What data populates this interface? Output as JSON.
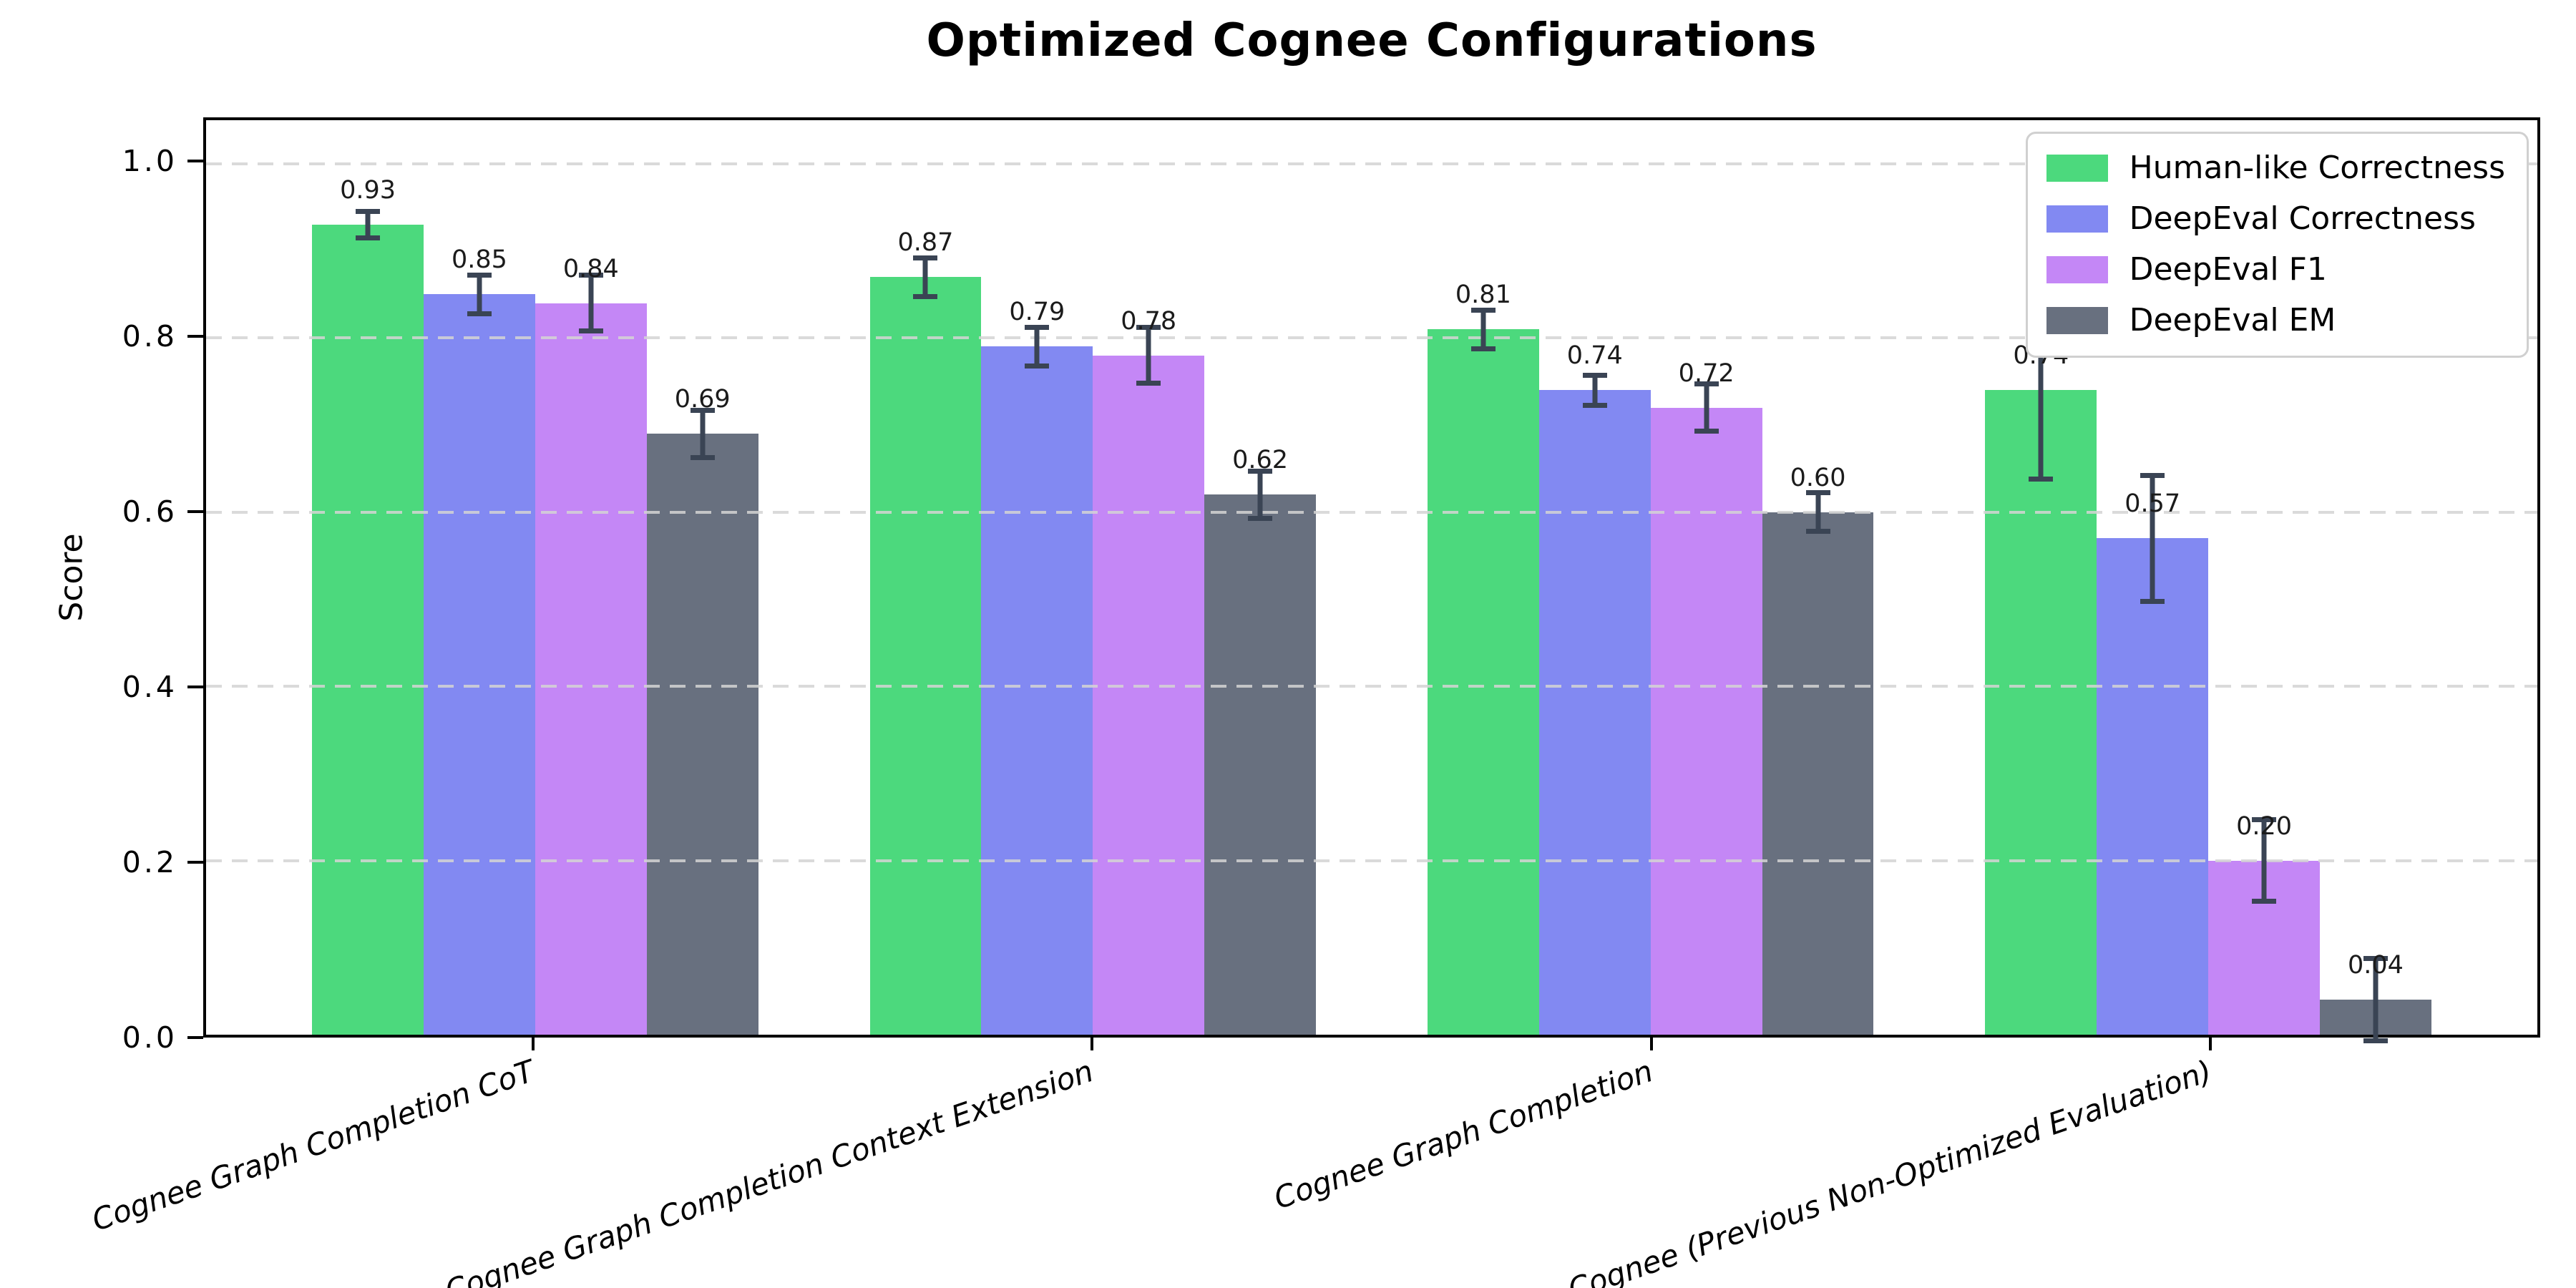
{
  "colors": {
    "background": "#ffffff",
    "axis": "#000000",
    "grid": "#d4d4d4",
    "value_label": "#1b1b1b",
    "error_bar": "#3a4454"
  },
  "chart_data": {
    "type": "bar",
    "title": "Optimized Cognee Configurations",
    "xlabel": "",
    "ylabel": "Score",
    "ylim": [
      0,
      1.05
    ],
    "yticks": [
      0.0,
      0.2,
      0.4,
      0.6,
      0.8,
      1.0
    ],
    "ytick_labels": [
      "0.0",
      "0.2",
      "0.4",
      "0.6",
      "0.8",
      "1.0"
    ],
    "grid": "horizontal-dashed",
    "legend_position": "upper-right",
    "categories": [
      "Cognee Graph Completion CoT",
      "Cognee Graph Completion Context Extension",
      "Cognee Graph Completion",
      "Cognee (Previous Non-Optimized Evaluation)"
    ],
    "x_positions": [
      0,
      1,
      2,
      3
    ],
    "xlim": [
      -0.59,
      3.59
    ],
    "bar_width": 0.2,
    "series": [
      {
        "name": "Human-like Correctness",
        "color": "#4cd97d",
        "values": [
          0.93,
          0.87,
          0.81,
          0.74
        ],
        "errors": [
          0.018,
          0.025,
          0.025,
          0.105
        ]
      },
      {
        "name": "DeepEval Correctness",
        "color": "#8289f2",
        "values": [
          0.85,
          0.79,
          0.74,
          0.57
        ],
        "errors": [
          0.025,
          0.025,
          0.02,
          0.075
        ]
      },
      {
        "name": "DeepEval F1",
        "color": "#c487f6",
        "values": [
          0.84,
          0.78,
          0.72,
          0.2
        ],
        "errors": [
          0.035,
          0.035,
          0.03,
          0.05
        ]
      },
      {
        "name": "DeepEval EM",
        "color": "#68707f",
        "values": [
          0.69,
          0.62,
          0.6,
          0.04
        ],
        "errors": [
          0.03,
          0.03,
          0.025,
          0.05
        ]
      }
    ],
    "bar_value_labels": [
      [
        "0.93",
        "0.87",
        "0.81",
        "0.74"
      ],
      [
        "0.85",
        "0.79",
        "0.74",
        "0.57"
      ],
      [
        "0.84",
        "0.78",
        "0.72",
        "0.20"
      ],
      [
        "0.69",
        "0.62",
        "0.60",
        "0.04"
      ]
    ]
  }
}
